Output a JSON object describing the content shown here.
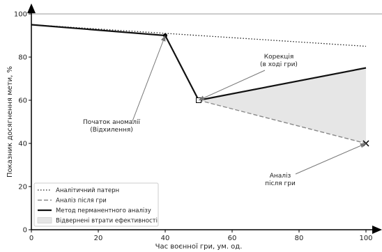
{
  "chart_data": {
    "type": "line",
    "xlabel": "Час воєнної гри, ум. од.",
    "ylabel": "Показник досягнення мети, %",
    "xlim": [
      0,
      100
    ],
    "ylim": [
      0,
      100
    ],
    "xticks": [
      0,
      20,
      40,
      60,
      80,
      100
    ],
    "yticks": [
      0,
      20,
      40,
      60,
      80,
      100
    ],
    "grid": false,
    "legend_position": "bottom-left",
    "series": [
      {
        "name": "Аналітичний патерн",
        "style": "dotted",
        "color": "#222222",
        "x": [
          0,
          100
        ],
        "y": [
          95,
          85
        ]
      },
      {
        "name": "Аналіз після гри",
        "style": "dashed",
        "color": "#888888",
        "x": [
          50,
          100
        ],
        "y": [
          60,
          40
        ]
      },
      {
        "name": "Метод перманентного аналізу",
        "style": "solid",
        "color": "#111111",
        "x": [
          0,
          40,
          50,
          100
        ],
        "y": [
          95,
          90,
          60,
          75
        ]
      }
    ],
    "area": {
      "name": "Відвернені втрати ефективності",
      "color": "#e6e6e6",
      "x": [
        50,
        100
      ],
      "upper": [
        60,
        75
      ],
      "lower": [
        60,
        40
      ]
    },
    "markers": [
      {
        "x": 40,
        "y": 90,
        "shape": "circle"
      },
      {
        "x": 50,
        "y": 60,
        "shape": "square"
      },
      {
        "x": 100,
        "y": 40,
        "shape": "x"
      }
    ],
    "annotations": [
      {
        "lines": [
          "Початок аномалії",
          "(Відхилення)"
        ],
        "point": [
          40,
          90
        ]
      },
      {
        "lines": [
          "Корекція",
          "(в ході гри)"
        ],
        "point": [
          50,
          60
        ]
      },
      {
        "lines": [
          "Аналіз",
          "після гри"
        ],
        "point": [
          100,
          40
        ]
      }
    ]
  }
}
